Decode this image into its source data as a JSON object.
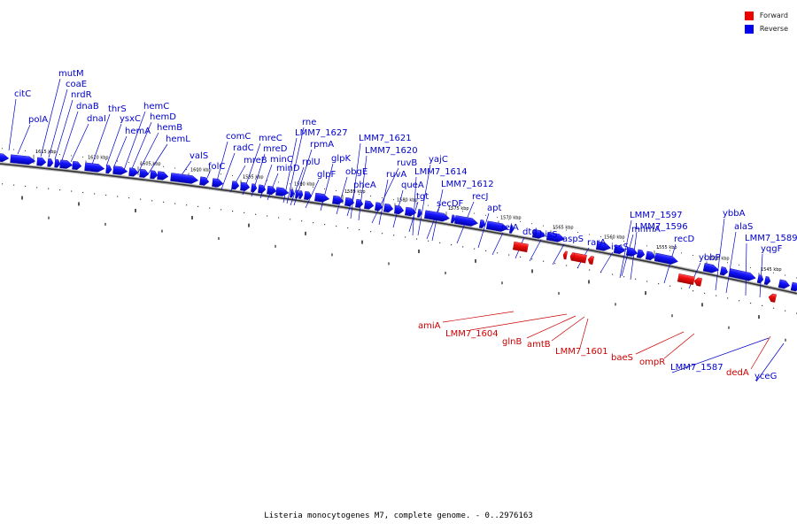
{
  "caption": "Listeria monocytogenes M7, complete genome. - 0..2976163",
  "legend": {
    "forward": {
      "label": "Forward",
      "color": "#ee0000"
    },
    "reverse": {
      "label": "Reverse",
      "color": "#0000ee"
    }
  },
  "kbp_marks": [
    "1615 kbp",
    "1610 kbp",
    "1605 kbp",
    "1600 kbp",
    "1595 kbp",
    "1590 kbp",
    "1585 kbp",
    "1580 kbp",
    "1575 kbp",
    "1570 kbp",
    "1565 kbp",
    "1560 kbp",
    "1555 kbp",
    "1550 kbp",
    "1545 kbp"
  ],
  "reverse_labels": [
    "citC",
    "polA",
    "mutM",
    "coaE",
    "nrdR",
    "dnaB",
    "dnaI",
    "thrS",
    "ysxC",
    "hemA",
    "hemC",
    "hemD",
    "hemB",
    "hemL",
    "valS",
    "folC",
    "comC",
    "radC",
    "mreB",
    "mreC",
    "mreD",
    "minC",
    "minD",
    "rne",
    "LMM7_1627",
    "rplU",
    "rpmA",
    "glpF",
    "glpK",
    "obgE",
    "pheA",
    "LMM7_1621",
    "LMM7_1620",
    "ruvB",
    "ruvA",
    "queA",
    "tgt",
    "yajC",
    "LMM7_1614",
    "secDF",
    "LMM7_1612",
    "recJ",
    "apt",
    "relA",
    "dtd",
    "hisS",
    "aspS",
    "rarA",
    "iscS",
    "mnmA",
    "LMM7_1597",
    "LMM7_1596",
    "recD",
    "ybbP",
    "ybbA",
    "alaS",
    "LMM7_1589",
    "yqgF",
    "LMM7_1587",
    "yceG"
  ],
  "forward_labels": [
    "amiA",
    "LMM7_1604",
    "glnB",
    "amtB",
    "LMM7_1601",
    "baeS",
    "ompR",
    "dedA"
  ]
}
